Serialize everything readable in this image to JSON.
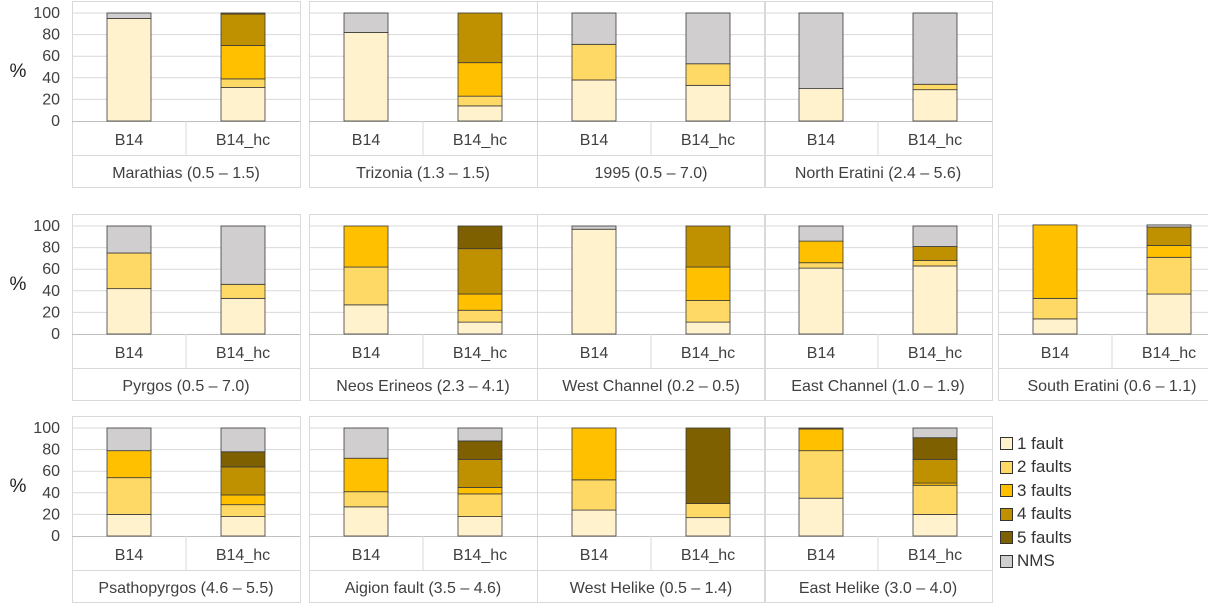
{
  "chart_data": {
    "type": "bar",
    "stacked": true,
    "y_label": "%",
    "y_ticks": [
      "0",
      "20",
      "40",
      "60",
      "80",
      "100"
    ],
    "ylim": [
      0,
      100
    ],
    "grid": true,
    "legend_position": "bottom-right",
    "series": [
      {
        "name": "1 fault",
        "color": "#FFF2CC"
      },
      {
        "name": "2 faults",
        "color": "#FFD966"
      },
      {
        "name": "3 faults",
        "color": "#FFC000"
      },
      {
        "name": "4 faults",
        "color": "#BF9000"
      },
      {
        "name": "5 faults",
        "color": "#7F6000"
      },
      {
        "name": "NMS",
        "color": "#D0CECE"
      }
    ],
    "panels": [
      {
        "title": "Marathias (0.5 – 1.5)",
        "categories": [
          "B14",
          "B14_hc"
        ],
        "values": [
          [
            95,
            0,
            0,
            0,
            0,
            5
          ],
          [
            31,
            8,
            31,
            29,
            1,
            0
          ]
        ]
      },
      {
        "title": "Trizonia (1.3 – 1.5)",
        "categories": [
          "B14",
          "B14_hc"
        ],
        "values": [
          [
            82,
            0,
            0,
            0,
            0,
            18
          ],
          [
            14,
            9,
            31,
            46,
            0,
            0
          ]
        ]
      },
      {
        "title": "1995 (0.5 – 7.0)",
        "categories": [
          "B14",
          "B14_hc"
        ],
        "values": [
          [
            38,
            33,
            0,
            0,
            0,
            29
          ],
          [
            33,
            20,
            0,
            0,
            0,
            47
          ]
        ]
      },
      {
        "title": "North  Eratini (2.4 – 5.6)",
        "categories": [
          "B14",
          "B14_hc"
        ],
        "values": [
          [
            30,
            0,
            0,
            0,
            0,
            70
          ],
          [
            29,
            5,
            0,
            0,
            0,
            66
          ]
        ]
      },
      {
        "title": "Pyrgos (0.5 – 7.0)",
        "categories": [
          "B14",
          "B14_hc"
        ],
        "values": [
          [
            42,
            33,
            0,
            0,
            0,
            25
          ],
          [
            33,
            13,
            0,
            0,
            0,
            54
          ]
        ]
      },
      {
        "title": "Neos  Erineos (2.3 – 4.1)",
        "categories": [
          "B14",
          "B14_hc"
        ],
        "values": [
          [
            27,
            35,
            38,
            0,
            0,
            0
          ],
          [
            11,
            11,
            15,
            42,
            21,
            0
          ]
        ]
      },
      {
        "title": "West  Channel (0.2 – 0.5)",
        "categories": [
          "B14",
          "B14_hc"
        ],
        "values": [
          [
            97,
            0,
            0,
            0,
            0,
            3
          ],
          [
            11,
            20,
            31,
            38,
            0,
            0
          ]
        ]
      },
      {
        "title": "East  Channel (1.0 – 1.9)",
        "categories": [
          "B14",
          "B14_hc"
        ],
        "values": [
          [
            61,
            5,
            20,
            0,
            0,
            14
          ],
          [
            63,
            5,
            0,
            13,
            0,
            19
          ]
        ]
      },
      {
        "title": "South  Eratini (0.6 – 1.1)",
        "categories": [
          "B14",
          "B14_hc"
        ],
        "values": [
          [
            14,
            19,
            68,
            0,
            0,
            0
          ],
          [
            37,
            34,
            11,
            17,
            0,
            2
          ]
        ]
      },
      {
        "title": "Psathopyrgos (4.6 – 5.5)",
        "categories": [
          "B14",
          "B14_hc"
        ],
        "values": [
          [
            20,
            34,
            25,
            0,
            0,
            21
          ],
          [
            18,
            11,
            9,
            26,
            14,
            22
          ]
        ]
      },
      {
        "title": "Aigion fault (3.5 – 4.6)",
        "categories": [
          "B14",
          "B14_hc"
        ],
        "values": [
          [
            27,
            14,
            31,
            0,
            0,
            28
          ],
          [
            18,
            21,
            6,
            26,
            17,
            12
          ]
        ]
      },
      {
        "title": "West  Helike (0.5 – 1.4)",
        "categories": [
          "B14",
          "B14_hc"
        ],
        "values": [
          [
            24,
            28,
            48,
            0,
            0,
            0
          ],
          [
            17,
            13,
            0,
            0,
            70,
            0
          ]
        ]
      },
      {
        "title": "East  Helike (3.0 – 4.0)",
        "categories": [
          "B14",
          "B14_hc"
        ],
        "values": [
          [
            35,
            44,
            20,
            0,
            1,
            0
          ],
          [
            20,
            27,
            2,
            22,
            20,
            9
          ]
        ]
      }
    ]
  }
}
